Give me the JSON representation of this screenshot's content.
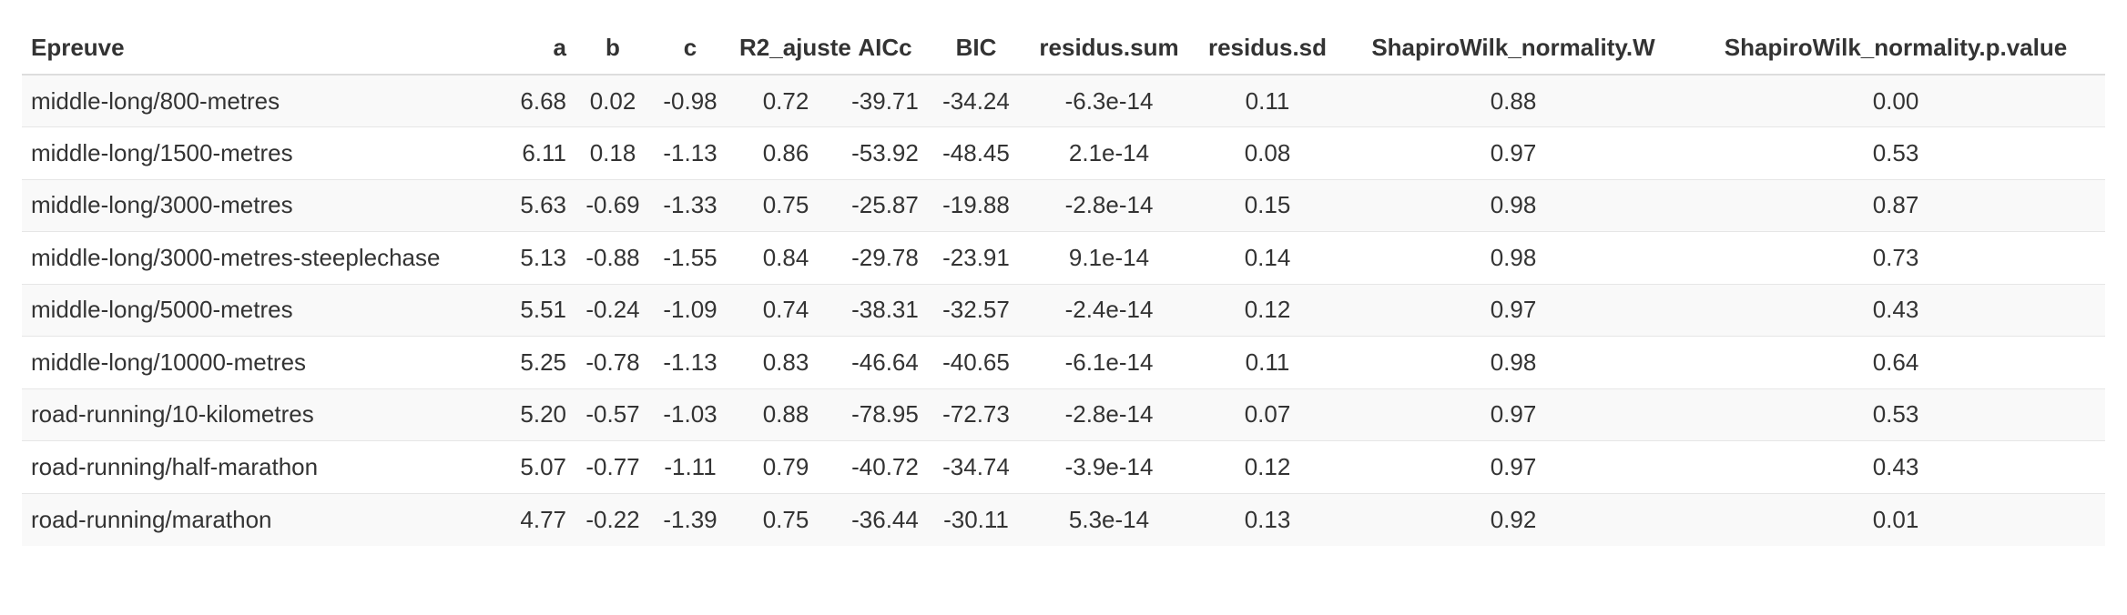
{
  "table": {
    "columns": [
      "Epreuve",
      "a",
      "b",
      "c",
      "R2_ajuste",
      "AICc",
      "BIC",
      "residus.sum",
      "residus.sd",
      "ShapiroWilk_normality.W",
      "ShapiroWilk_normality.p.value"
    ],
    "rows": [
      [
        "middle-long/800-metres",
        "6.68",
        "0.02",
        "-0.98",
        "0.72",
        "-39.71",
        "-34.24",
        "-6.3e-14",
        "0.11",
        "0.88",
        "0.00"
      ],
      [
        "middle-long/1500-metres",
        "6.11",
        "0.18",
        "-1.13",
        "0.86",
        "-53.92",
        "-48.45",
        "2.1e-14",
        "0.08",
        "0.97",
        "0.53"
      ],
      [
        "middle-long/3000-metres",
        "5.63",
        "-0.69",
        "-1.33",
        "0.75",
        "-25.87",
        "-19.88",
        "-2.8e-14",
        "0.15",
        "0.98",
        "0.87"
      ],
      [
        "middle-long/3000-metres-steeplechase",
        "5.13",
        "-0.88",
        "-1.55",
        "0.84",
        "-29.78",
        "-23.91",
        "9.1e-14",
        "0.14",
        "0.98",
        "0.73"
      ],
      [
        "middle-long/5000-metres",
        "5.51",
        "-0.24",
        "-1.09",
        "0.74",
        "-38.31",
        "-32.57",
        "-2.4e-14",
        "0.12",
        "0.97",
        "0.43"
      ],
      [
        "middle-long/10000-metres",
        "5.25",
        "-0.78",
        "-1.13",
        "0.83",
        "-46.64",
        "-40.65",
        "-6.1e-14",
        "0.11",
        "0.98",
        "0.64"
      ],
      [
        "road-running/10-kilometres",
        "5.20",
        "-0.57",
        "-1.03",
        "0.88",
        "-78.95",
        "-72.73",
        "-2.8e-14",
        "0.07",
        "0.97",
        "0.53"
      ],
      [
        "road-running/half-marathon",
        "5.07",
        "-0.77",
        "-1.11",
        "0.79",
        "-40.72",
        "-34.74",
        "-3.9e-14",
        "0.12",
        "0.97",
        "0.43"
      ],
      [
        "road-running/marathon",
        "4.77",
        "-0.22",
        "-1.39",
        "0.75",
        "-36.44",
        "-30.11",
        "5.3e-14",
        "0.13",
        "0.92",
        "0.01"
      ]
    ]
  }
}
